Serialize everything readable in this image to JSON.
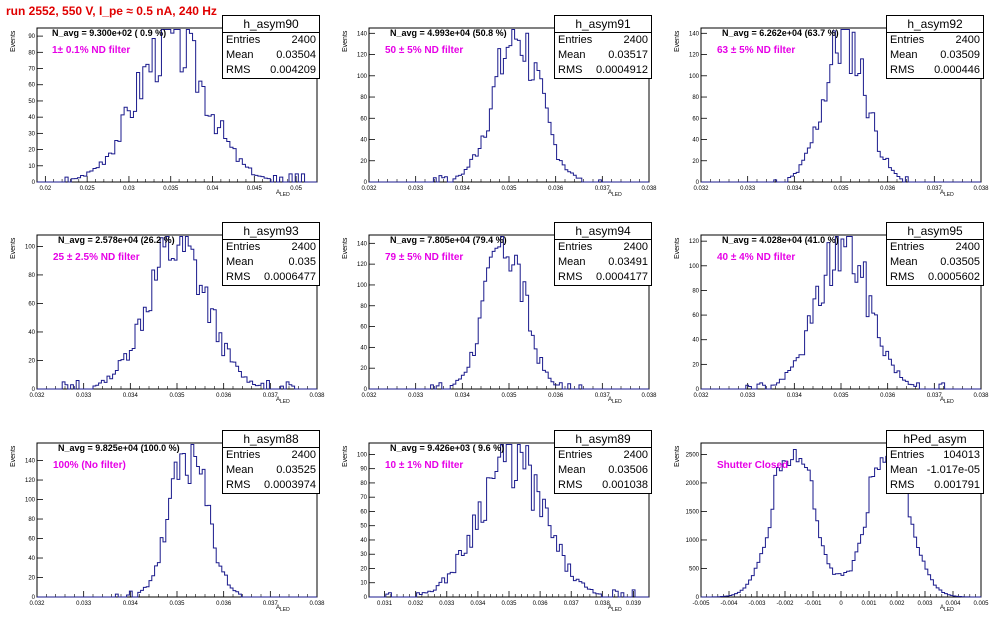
{
  "page_title": "run 2552,   550 V, I_pe ≈ 0.5 nA, 240 Hz",
  "colors": {
    "histogram": "#1a1a8c",
    "title": "#e00000",
    "filter_text": "#e600e6"
  },
  "stats_labels": {
    "entries": "Entries",
    "mean": "Mean",
    "rms": "RMS"
  },
  "y_label": "Events",
  "x_label": "A",
  "x_label_sub": "LED",
  "chart_data": [
    {
      "type": "histogram",
      "name": "h_asym90",
      "navg": "N_avg = 9.300e+02 ( 0.9 %)",
      "filter": "1± 0.1% ND filter",
      "entries": "2400",
      "mean": "0.03504",
      "rms": "0.004209",
      "xlim": [
        0.019,
        0.0525
      ],
      "ylim": [
        0,
        95
      ],
      "xticks": [
        0.02,
        0.025,
        0.03,
        0.035,
        0.04,
        0.045,
        0.05
      ],
      "xticklabels": [
        "0.02",
        "0.025",
        "0.03",
        "0.035",
        "0.04",
        "0.045",
        "0.05"
      ],
      "yticks": [
        0,
        10,
        20,
        30,
        40,
        50,
        60,
        70,
        80,
        90
      ],
      "dist": {
        "mean": 0.03504,
        "sigma": 0.004209,
        "peak": 88,
        "bins": 90,
        "seed": 3
      }
    },
    {
      "type": "histogram",
      "name": "h_asym91",
      "navg": "N_avg = 4.993e+04 (50.8 %)",
      "filter": "50 ± 5% ND filter",
      "entries": "2400",
      "mean": "0.03517",
      "rms": "0.0004912",
      "xlim": [
        0.032,
        0.038
      ],
      "ylim": [
        0,
        145
      ],
      "xticks": [
        0.032,
        0.033,
        0.034,
        0.035,
        0.036,
        0.037,
        0.038
      ],
      "xticklabels": [
        "0.032",
        "0.033",
        "0.034",
        "0.035",
        "0.036",
        "0.037",
        "0.038"
      ],
      "yticks": [
        0,
        20,
        40,
        60,
        80,
        100,
        120,
        140
      ],
      "dist": {
        "mean": 0.03517,
        "sigma": 0.0004912,
        "peak": 138,
        "bins": 100,
        "seed": 7
      }
    },
    {
      "type": "histogram",
      "name": "h_asym92",
      "navg": "N_avg = 6.262e+04 (63.7 %)",
      "filter": "63 ± 5% ND filter",
      "entries": "2400",
      "mean": "0.03509",
      "rms": "0.000446",
      "xlim": [
        0.032,
        0.038
      ],
      "ylim": [
        0,
        145
      ],
      "xticks": [
        0.032,
        0.033,
        0.034,
        0.035,
        0.036,
        0.037,
        0.038
      ],
      "xticklabels": [
        "0.032",
        "0.033",
        "0.034",
        "0.035",
        "0.036",
        "0.037",
        "0.038"
      ],
      "yticks": [
        0,
        20,
        40,
        60,
        80,
        100,
        120,
        140
      ],
      "dist": {
        "mean": 0.03509,
        "sigma": 0.000446,
        "peak": 138,
        "bins": 100,
        "seed": 11
      }
    },
    {
      "type": "histogram",
      "name": "h_asym93",
      "navg": "N_avg = 2.578e+04 (26.2 %)",
      "filter": "25 ± 2.5% ND filter",
      "entries": "2400",
      "mean": "0.035",
      "rms": "0.0006477",
      "xlim": [
        0.032,
        0.038
      ],
      "ylim": [
        0,
        108
      ],
      "xticks": [
        0.032,
        0.033,
        0.034,
        0.035,
        0.036,
        0.037,
        0.038
      ],
      "xticklabels": [
        "0.032",
        "0.033",
        "0.034",
        "0.035",
        "0.036",
        "0.037",
        "0.038"
      ],
      "yticks": [
        0,
        20,
        40,
        60,
        80,
        100
      ],
      "dist": {
        "mean": 0.035,
        "sigma": 0.0006477,
        "peak": 100,
        "bins": 100,
        "seed": 13
      }
    },
    {
      "type": "histogram",
      "name": "h_asym94",
      "navg": "N_avg = 7.805e+04 (79.4 %)",
      "filter": "79 ± 5% ND filter",
      "entries": "2400",
      "mean": "0.03491",
      "rms": "0.0004177",
      "xlim": [
        0.032,
        0.038
      ],
      "ylim": [
        0,
        148
      ],
      "xticks": [
        0.032,
        0.033,
        0.034,
        0.035,
        0.036,
        0.037,
        0.038
      ],
      "xticklabels": [
        "0.032",
        "0.033",
        "0.034",
        "0.035",
        "0.036",
        "0.037",
        "0.038"
      ],
      "yticks": [
        0,
        20,
        40,
        60,
        80,
        100,
        120,
        140
      ],
      "dist": {
        "mean": 0.03491,
        "sigma": 0.0004177,
        "peak": 142,
        "bins": 100,
        "seed": 17
      }
    },
    {
      "type": "histogram",
      "name": "h_asym95",
      "navg": "N_avg = 4.028e+04 (41.0 %)",
      "filter": "40 ± 4% ND filter",
      "entries": "2400",
      "mean": "0.03505",
      "rms": "0.0005602",
      "xlim": [
        0.032,
        0.038
      ],
      "ylim": [
        0,
        125
      ],
      "xticks": [
        0.032,
        0.033,
        0.034,
        0.035,
        0.036,
        0.037,
        0.038
      ],
      "xticklabels": [
        "0.032",
        "0.033",
        "0.034",
        "0.035",
        "0.036",
        "0.037",
        "0.038"
      ],
      "yticks": [
        0,
        20,
        40,
        60,
        80,
        100,
        120
      ],
      "dist": {
        "mean": 0.03505,
        "sigma": 0.0005602,
        "peak": 116,
        "bins": 100,
        "seed": 19
      }
    },
    {
      "type": "histogram",
      "name": "h_asym88",
      "navg": "N_avg = 9.825e+04 (100.0 %)",
      "filter": "100% (No filter)",
      "entries": "2400",
      "mean": "0.03525",
      "rms": "0.0003974",
      "xlim": [
        0.032,
        0.038
      ],
      "ylim": [
        0,
        158
      ],
      "xticks": [
        0.032,
        0.033,
        0.034,
        0.035,
        0.036,
        0.037,
        0.038
      ],
      "xticklabels": [
        "0.032",
        "0.033",
        "0.034",
        "0.035",
        "0.036",
        "0.037",
        "0.038"
      ],
      "yticks": [
        0,
        20,
        40,
        60,
        80,
        100,
        120,
        140
      ],
      "dist": {
        "mean": 0.03525,
        "sigma": 0.0003974,
        "peak": 148,
        "bins": 100,
        "seed": 23
      }
    },
    {
      "type": "histogram",
      "name": "h_asym89",
      "navg": "N_avg = 9.426e+03 ( 9.6 %)",
      "filter": "10 ± 1% ND filter",
      "entries": "2400",
      "mean": "0.03506",
      "rms": "0.001038",
      "xlim": [
        0.0305,
        0.0395
      ],
      "ylim": [
        0,
        108
      ],
      "xticks": [
        0.031,
        0.032,
        0.033,
        0.034,
        0.035,
        0.036,
        0.037,
        0.038,
        0.039
      ],
      "xticklabels": [
        "0.031",
        "0.032",
        "0.033",
        "0.034",
        "0.035",
        "0.036",
        "0.037",
        "0.038",
        "0.039"
      ],
      "yticks": [
        0,
        10,
        20,
        30,
        40,
        50,
        60,
        70,
        80,
        90,
        100
      ],
      "dist": {
        "mean": 0.03506,
        "sigma": 0.001038,
        "peak": 98,
        "bins": 100,
        "seed": 29
      }
    },
    {
      "type": "histogram",
      "name": "hPed_asym",
      "navg": "",
      "filter": "Shutter Closed",
      "entries": "104013",
      "mean": "-1.017e-05",
      "rms": "0.001791",
      "xlim": [
        -0.005,
        0.005
      ],
      "ylim": [
        0,
        2700
      ],
      "xticks": [
        -0.005,
        -0.004,
        -0.003,
        -0.002,
        -0.001,
        0,
        0.001,
        0.002,
        0.003,
        0.004,
        0.005
      ],
      "xticklabels": [
        "-0.005",
        "-0.004",
        "-0.003",
        "-0.002",
        "-0.001",
        "0",
        "0.001",
        "0.002",
        "0.003",
        "0.004",
        "0.005"
      ],
      "yticks": [
        0,
        500,
        1000,
        1500,
        2000,
        2500
      ],
      "dist": {
        "bimodal": true,
        "centers": [
          -0.0017,
          0.0017
        ],
        "sigma": 0.00075,
        "peak": 2450,
        "dip": 420,
        "bins": 100,
        "seed": 31
      }
    }
  ]
}
